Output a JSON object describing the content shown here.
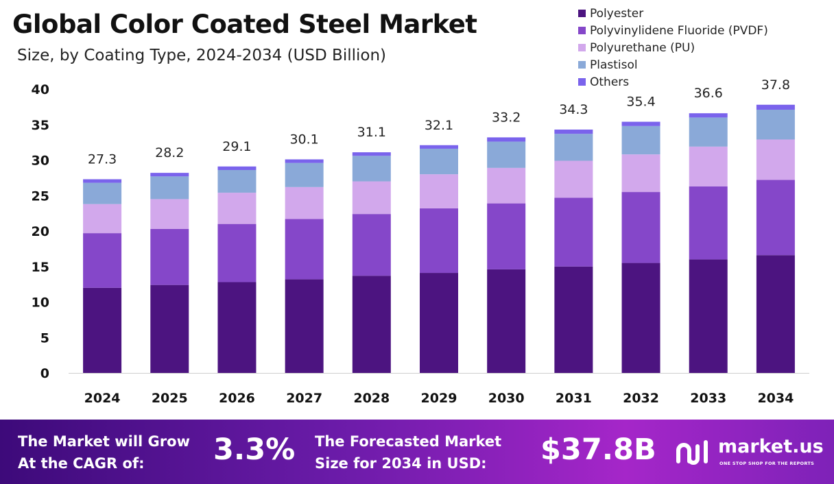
{
  "chart_data": {
    "type": "bar",
    "stacked": true,
    "title": "Global Color Coated Steel Market",
    "subtitle": "Size, by Coating Type, 2024-2034 (USD Billion)",
    "xlabel": "",
    "ylabel": "",
    "ylim": [
      0,
      40
    ],
    "yticks": [
      0,
      5,
      10,
      15,
      20,
      25,
      30,
      35,
      40
    ],
    "categories": [
      "2024",
      "2025",
      "2026",
      "2027",
      "2028",
      "2029",
      "2030",
      "2031",
      "2032",
      "2033",
      "2034"
    ],
    "series": [
      {
        "name": "Polyester",
        "color": "#4c1480",
        "values": [
          12.0,
          12.4,
          12.8,
          13.2,
          13.7,
          14.1,
          14.6,
          15.0,
          15.5,
          16.0,
          16.6
        ]
      },
      {
        "name": "Polyvinylidene Fluoride (PVDF)",
        "color": "#8547c9",
        "values": [
          7.7,
          7.9,
          8.2,
          8.5,
          8.7,
          9.1,
          9.3,
          9.7,
          10.0,
          10.3,
          10.6
        ]
      },
      {
        "name": "Polyurethane (PU)",
        "color": "#d2a8ec",
        "values": [
          4.1,
          4.2,
          4.4,
          4.5,
          4.6,
          4.8,
          5.0,
          5.2,
          5.3,
          5.6,
          5.7
        ]
      },
      {
        "name": "Plastisol",
        "color": "#8aa9d8",
        "values": [
          3.0,
          3.2,
          3.2,
          3.4,
          3.6,
          3.6,
          3.7,
          3.8,
          4.0,
          4.1,
          4.2
        ]
      },
      {
        "name": "Others",
        "color": "#7a63ec",
        "values": [
          0.5,
          0.5,
          0.5,
          0.5,
          0.5,
          0.5,
          0.6,
          0.6,
          0.6,
          0.6,
          0.7
        ]
      }
    ],
    "totals": [
      27.3,
      28.2,
      29.1,
      30.1,
      31.1,
      32.1,
      33.2,
      34.3,
      35.4,
      36.6,
      37.8
    ],
    "total_labels": [
      "27.3",
      "28.2",
      "29.1",
      "30.1",
      "31.1",
      "32.1",
      "33.2",
      "34.3",
      "35.4",
      "36.6",
      "37.8"
    ],
    "legend_position": "top-right",
    "grid": false
  },
  "footer": {
    "cagr_line1": "The Market will Grow",
    "cagr_line2": "At the CAGR of:",
    "cagr_value": "3.3%",
    "forecast_line1": "The Forecasted Market",
    "forecast_line2": "Size for 2034 in USD:",
    "forecast_value": "$37.8B",
    "brand_name": "market.us",
    "brand_tagline": "ONE STOP SHOP FOR THE REPORTS"
  }
}
